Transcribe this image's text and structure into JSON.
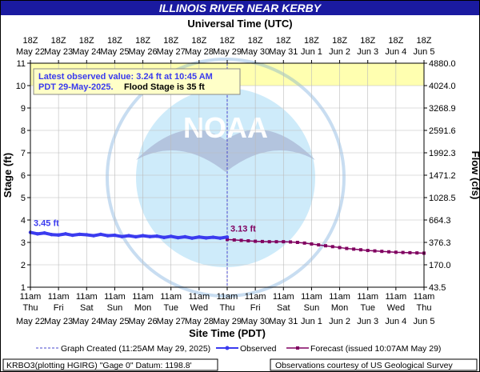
{
  "title": "ILLINOIS RIVER NEAR KERBY",
  "top_axis_title": "Universal Time (UTC)",
  "bottom_axis_title": "Site Time (PDT)",
  "left_axis_title": "Stage (ft)",
  "right_axis_title": "Flow (cfs)",
  "info_box": {
    "line1": "Latest observed value: 3.24 ft at 10:45 AM",
    "line2_date": "PDT 29-May-2025.",
    "line2_flood": "Flood Stage is 35 ft"
  },
  "watermark": "NOAA",
  "legend": {
    "created": "Graph Created (11:25AM May 29, 2025)",
    "observed": "Observed",
    "forecast": "Forecast (issued 10:07AM May 29)"
  },
  "footer": {
    "left": "KRBO3(plotting HGIRG) \"Gage 0\" Datum: 1198.8'",
    "right": "Observations courtesy of US Geological Survey"
  },
  "colors": {
    "observed": "#3b3bef",
    "forecast": "#800060",
    "created_line": "#4a4acc",
    "flood_band": "#ffffb0",
    "title_bar": "#1a1aa0",
    "info_text": "#3a3aee"
  },
  "chart_data": {
    "type": "line",
    "ylim": [
      1,
      11
    ],
    "y_ticks": [
      1,
      2,
      3,
      4,
      5,
      6,
      7,
      8,
      9,
      10,
      11
    ],
    "flow_ticks": [
      "43.5",
      "170.0",
      "376.3",
      "664.3",
      "1028.5",
      "1471.2",
      "1992.3",
      "2591.6",
      "3268.9",
      "4024.0",
      "4880.0"
    ],
    "flood_band_start": 10,
    "x_days": 14,
    "x_start_day": 0,
    "top_ticks": [
      {
        "hour": "18Z",
        "date": "May 22"
      },
      {
        "hour": "18Z",
        "date": "May 23"
      },
      {
        "hour": "18Z",
        "date": "May 24"
      },
      {
        "hour": "18Z",
        "date": "May 25"
      },
      {
        "hour": "18Z",
        "date": "May 26"
      },
      {
        "hour": "18Z",
        "date": "May 27"
      },
      {
        "hour": "18Z",
        "date": "May 28"
      },
      {
        "hour": "18Z",
        "date": "May 29"
      },
      {
        "hour": "18Z",
        "date": "May 30"
      },
      {
        "hour": "18Z",
        "date": "May 31"
      },
      {
        "hour": "18Z",
        "date": "Jun 1"
      },
      {
        "hour": "18Z",
        "date": "Jun 2"
      },
      {
        "hour": "18Z",
        "date": "Jun 3"
      },
      {
        "hour": "18Z",
        "date": "Jun 4"
      },
      {
        "hour": "18Z",
        "date": "Jun 5"
      }
    ],
    "bottom_ticks": [
      {
        "time": "11am",
        "day": "Thu",
        "date": "May 22"
      },
      {
        "time": "11am",
        "day": "Fri",
        "date": "May 23"
      },
      {
        "time": "11am",
        "day": "Sat",
        "date": "May 24"
      },
      {
        "time": "11am",
        "day": "Sun",
        "date": "May 25"
      },
      {
        "time": "11am",
        "day": "Mon",
        "date": "May 26"
      },
      {
        "time": "11am",
        "day": "Tue",
        "date": "May 27"
      },
      {
        "time": "11am",
        "day": "Wed",
        "date": "May 28"
      },
      {
        "time": "11am",
        "day": "Thu",
        "date": "May 29"
      },
      {
        "time": "11am",
        "day": "Fri",
        "date": "May 30"
      },
      {
        "time": "11am",
        "day": "Sat",
        "date": "May 31"
      },
      {
        "time": "11am",
        "day": "Sun",
        "date": "Jun 1"
      },
      {
        "time": "11am",
        "day": "Mon",
        "date": "Jun 2"
      },
      {
        "time": "11am",
        "day": "Tue",
        "date": "Jun 3"
      },
      {
        "time": "11am",
        "day": "Wed",
        "date": "Jun 4"
      },
      {
        "time": "11am",
        "day": "Thu",
        "date": "Jun 5"
      }
    ],
    "created_day": 7.0,
    "observed_label": "3.45 ft",
    "forecast_label": "3.13 ft",
    "observed": {
      "name": "Observed",
      "days": [
        0,
        0.25,
        0.5,
        0.75,
        1.0,
        1.25,
        1.5,
        1.75,
        2.0,
        2.25,
        2.5,
        2.75,
        3.0,
        3.25,
        3.5,
        3.75,
        4.0,
        4.25,
        4.5,
        4.75,
        5.0,
        5.25,
        5.5,
        5.75,
        6.0,
        6.25,
        6.5,
        6.75,
        7.0
      ],
      "stage": [
        3.45,
        3.38,
        3.42,
        3.35,
        3.33,
        3.38,
        3.32,
        3.36,
        3.34,
        3.3,
        3.36,
        3.3,
        3.32,
        3.26,
        3.3,
        3.25,
        3.3,
        3.26,
        3.28,
        3.22,
        3.27,
        3.21,
        3.25,
        3.19,
        3.24,
        3.2,
        3.23,
        3.19,
        3.24
      ]
    },
    "forecast": {
      "name": "Forecast (issued 10:07AM May 29)",
      "days": [
        7.0,
        7.25,
        7.5,
        7.75,
        8.0,
        8.25,
        8.5,
        8.75,
        9.0,
        9.25,
        9.5,
        9.75,
        10.0,
        10.25,
        10.5,
        10.75,
        11.0,
        11.25,
        11.5,
        11.75,
        12.0,
        12.25,
        12.5,
        12.75,
        13.0,
        13.25,
        13.5,
        13.75,
        14.0
      ],
      "stage": [
        3.13,
        3.11,
        3.09,
        3.07,
        3.05,
        3.04,
        3.03,
        3.03,
        3.03,
        3.02,
        3.0,
        2.97,
        2.93,
        2.89,
        2.85,
        2.81,
        2.77,
        2.73,
        2.7,
        2.67,
        2.64,
        2.62,
        2.6,
        2.58,
        2.56,
        2.55,
        2.54,
        2.53,
        2.52
      ]
    }
  }
}
